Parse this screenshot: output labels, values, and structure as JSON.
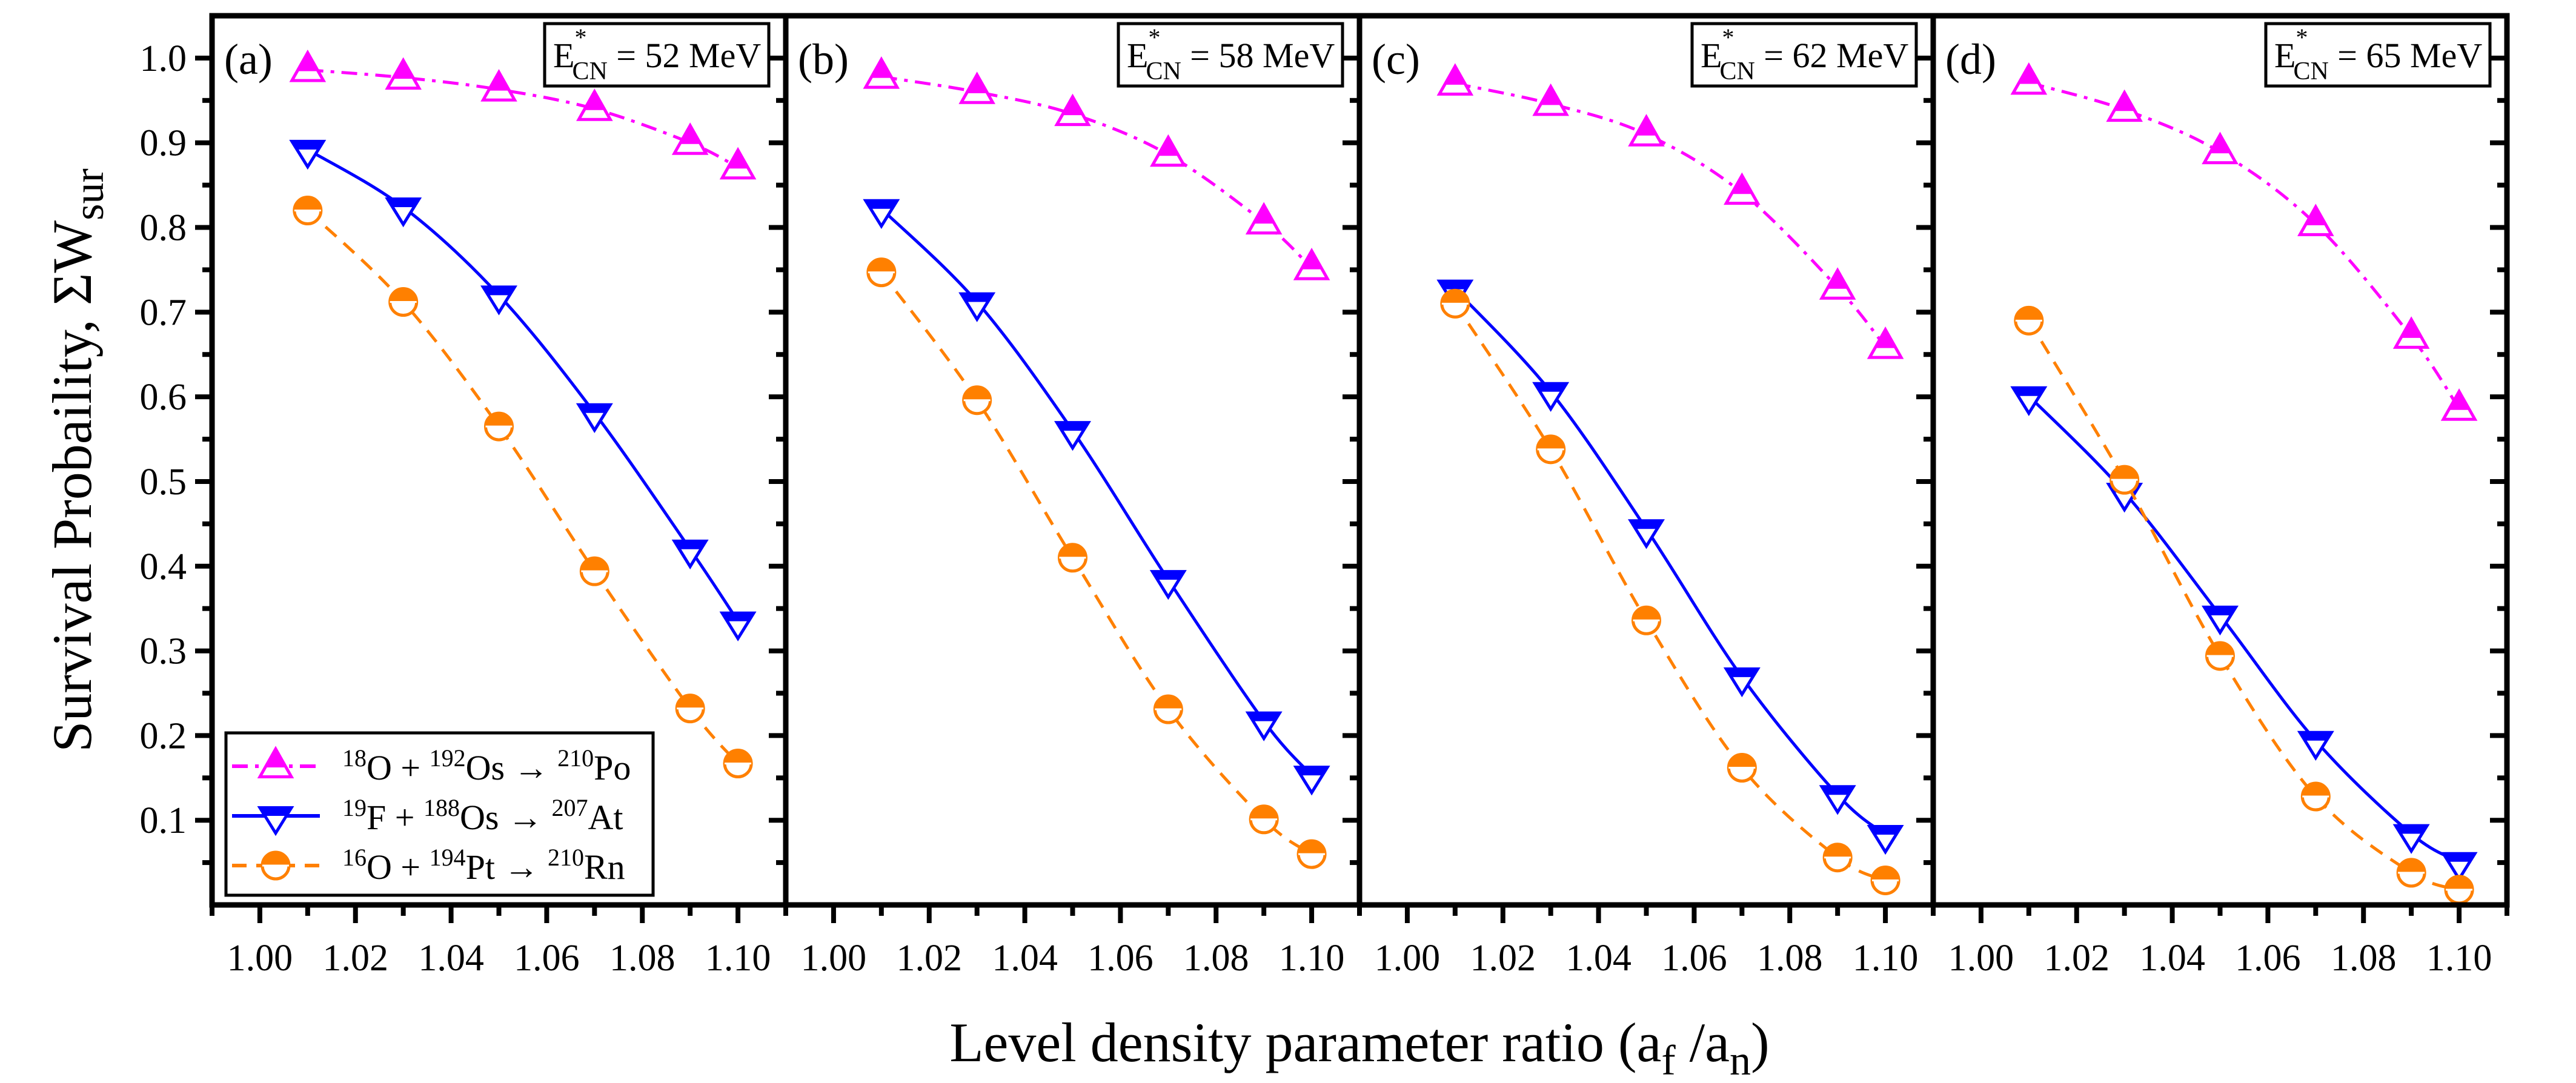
{
  "chart_data": {
    "type": "line",
    "layout": "1x4 panels sharing y-axis",
    "xlabel": "Level density parameter ratio  (a_f /a_n)",
    "xlabel_parts": {
      "main": "Level density parameter ratio  (a",
      "sub1": "f",
      "mid": " /a",
      "sub2": "n",
      "end": ")"
    },
    "ylabel": "Survival Probaility,  ΣW_sur",
    "ylabel_parts": {
      "main": "Survival Probaility,  ΣW",
      "sub": "sur"
    },
    "xlim": [
      0.99,
      1.11
    ],
    "ylim": [
      0.0,
      1.05
    ],
    "x_ticks": [
      1.0,
      1.02,
      1.04,
      1.06,
      1.08,
      1.1
    ],
    "x_tick_labels": [
      "1.00",
      "1.02",
      "1.04",
      "1.06",
      "1.08",
      "1.10"
    ],
    "x_minor_ticks": [
      0.99,
      1.01,
      1.03,
      1.05,
      1.07,
      1.09,
      1.11
    ],
    "y_ticks": [
      0.1,
      0.2,
      0.3,
      0.4,
      0.5,
      0.6,
      0.7,
      0.8,
      0.9,
      1.0
    ],
    "y_tick_labels": [
      "0.1",
      "0.2",
      "0.3",
      "0.4",
      "0.5",
      "0.6",
      "0.7",
      "0.8",
      "0.9",
      "1.0"
    ],
    "y_minor_ticks": [
      0.05,
      0.15,
      0.25,
      0.35,
      0.45,
      0.55,
      0.65,
      0.75,
      0.85,
      0.95
    ],
    "grid": false,
    "legend": {
      "placement": "bottom-left of panel (a)",
      "entries": [
        {
          "series": 0,
          "pre1": "18",
          "el1": "O + ",
          "pre2": "192",
          "el2": "Os → ",
          "pre3": "210",
          "el3": "Po"
        },
        {
          "series": 1,
          "pre1": "19",
          "el1": "F + ",
          "pre2": "188",
          "el2": "Os → ",
          "pre3": "207",
          "el3": "At"
        },
        {
          "series": 2,
          "pre1": "16",
          "el1": "O + ",
          "pre2": "194",
          "el2": "Pt → ",
          "pre3": "210",
          "el3": "Rn"
        }
      ]
    },
    "x": [
      1.01,
      1.03,
      1.05,
      1.07,
      1.09,
      1.1
    ],
    "series_styles": [
      {
        "name": "18O + 192Os → 210Po",
        "color": "#FF00FF",
        "line": "dash-dot",
        "marker": "triangle-up half-filled"
      },
      {
        "name": "19F + 188Os → 207At",
        "color": "#0000FF",
        "line": "solid",
        "marker": "triangle-down half-filled"
      },
      {
        "name": "16O + 194Pt → 210Rn",
        "color": "#FF8000",
        "line": "dashed",
        "marker": "circle half-filled"
      }
    ],
    "panels": [
      {
        "tag": "(a)",
        "energy": {
          "E": "E",
          "sup": "*",
          "sub": "CN",
          "rest": " = 52 MeV"
        },
        "series": [
          {
            "name": "18O + 192Os → 210Po",
            "values": [
              0.986,
              0.977,
              0.963,
              0.94,
              0.9,
              0.871
            ]
          },
          {
            "name": "19F + 188Os → 207At",
            "values": [
              0.892,
              0.824,
              0.72,
              0.581,
              0.42,
              0.335
            ]
          },
          {
            "name": "16O + 194Pt → 210Rn",
            "values": [
              0.82,
              0.712,
              0.565,
              0.394,
              0.232,
              0.167
            ]
          }
        ]
      },
      {
        "tag": "(b)",
        "energy": {
          "E": "E",
          "sup": "*",
          "sub": "CN",
          "rest": " = 58 MeV"
        },
        "series": [
          {
            "name": "18O + 192Os → 210Po",
            "values": [
              0.978,
              0.96,
              0.934,
              0.886,
              0.806,
              0.752
            ]
          },
          {
            "name": "19F + 188Os → 207At",
            "values": [
              0.822,
              0.712,
              0.56,
              0.384,
              0.217,
              0.153
            ]
          },
          {
            "name": "16O + 194Pt → 210Rn",
            "values": [
              0.747,
              0.596,
              0.41,
              0.231,
              0.101,
              0.06
            ]
          }
        ]
      },
      {
        "tag": "(c)",
        "energy": {
          "E": "E",
          "sup": "*",
          "sub": "CN",
          "rest": " = 62 MeV"
        },
        "series": [
          {
            "name": "18O + 192Os → 210Po",
            "values": [
              0.97,
              0.946,
              0.91,
              0.841,
              0.729,
              0.659
            ]
          },
          {
            "name": "19F + 188Os → 207At",
            "values": [
              0.727,
              0.606,
              0.444,
              0.269,
              0.13,
              0.083
            ]
          },
          {
            "name": "16O + 194Pt → 210Rn",
            "values": [
              0.71,
              0.538,
              0.336,
              0.162,
              0.056,
              0.029
            ]
          }
        ]
      },
      {
        "tag": "(d)",
        "energy": {
          "E": "E",
          "sup": "*",
          "sub": "CN",
          "rest": " = 65 MeV"
        },
        "series": [
          {
            "name": "18O + 192Os → 210Po",
            "values": [
              0.971,
              0.939,
              0.889,
              0.804,
              0.671,
              0.586
            ]
          },
          {
            "name": "19F + 188Os → 207At",
            "values": [
              0.601,
              0.487,
              0.342,
              0.194,
              0.084,
              0.051
            ]
          },
          {
            "name": "16O + 194Pt → 210Rn",
            "values": [
              0.69,
              0.502,
              0.294,
              0.128,
              0.038,
              0.018
            ]
          }
        ]
      }
    ]
  }
}
